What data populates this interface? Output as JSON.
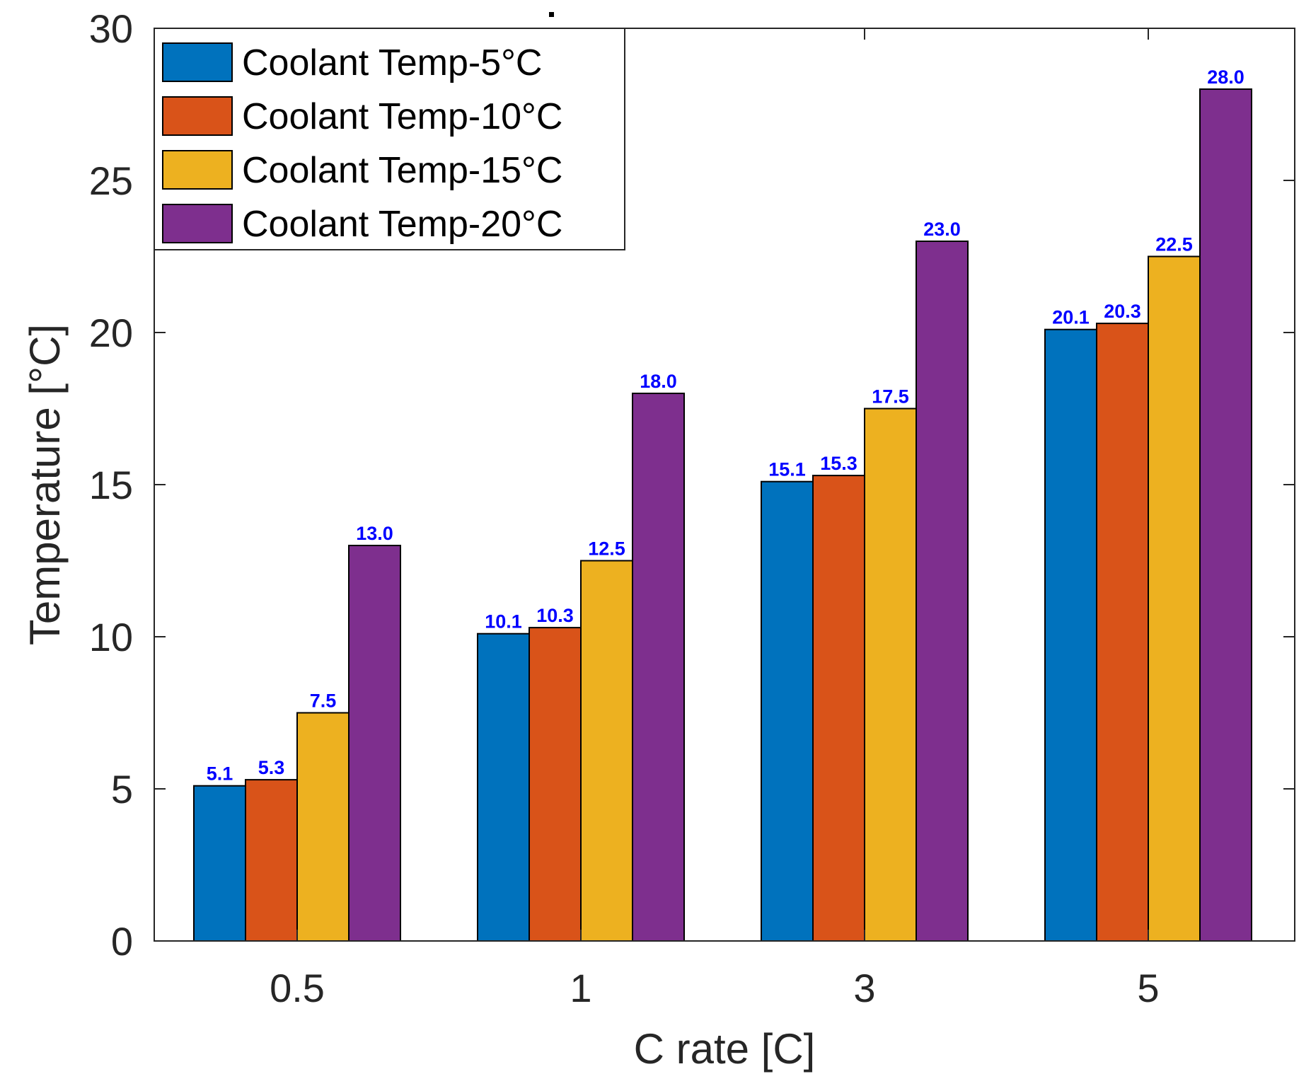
{
  "chart_data": {
    "type": "bar",
    "title": "",
    "xlabel": "C rate [C]",
    "ylabel": "Temperature [°C]",
    "categories": [
      "0.5",
      "1",
      "3",
      "5"
    ],
    "ylim": [
      0,
      30
    ],
    "yticks": [
      0,
      5,
      10,
      15,
      20,
      25,
      30
    ],
    "grid": false,
    "legend_position": "top-left",
    "label_color": "#0000FF",
    "series": [
      {
        "name": "Coolant Temp-5°C",
        "color": "#0072BD",
        "values": [
          5.1,
          10.1,
          15.1,
          20.1
        ],
        "labels": [
          "5.1",
          "10.1",
          "15.1",
          "20.1"
        ]
      },
      {
        "name": "Coolant Temp-10°C",
        "color": "#D95319",
        "values": [
          5.3,
          10.3,
          15.3,
          20.3
        ],
        "labels": [
          "5.3",
          "10.3",
          "15.3",
          "20.3"
        ]
      },
      {
        "name": "Coolant Temp-15°C",
        "color": "#EDB120",
        "values": [
          7.5,
          12.5,
          17.5,
          22.5
        ],
        "labels": [
          "7.5",
          "12.5",
          "17.5",
          "22.5"
        ]
      },
      {
        "name": "Coolant Temp-20°C",
        "color": "#7E2F8E",
        "values": [
          13.0,
          18.0,
          23.0,
          28.0
        ],
        "labels": [
          "13.0",
          "18.0",
          "23.0",
          "28.0"
        ]
      }
    ]
  }
}
